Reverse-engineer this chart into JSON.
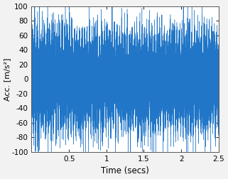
{
  "title": "",
  "xlabel": "Time (secs)",
  "ylabel": "Acc. [m/s²]",
  "xlim": [
    0,
    2.5
  ],
  "ylim": [
    -100,
    100
  ],
  "xticks": [
    0.5,
    1.0,
    1.5,
    2.0,
    2.5
  ],
  "yticks": [
    -100,
    -80,
    -60,
    -40,
    -20,
    0,
    20,
    40,
    60,
    80,
    100
  ],
  "line_color": "#2176C7",
  "fill_color": "#4AABDB",
  "background_color": "#F2F2F2",
  "axes_bg": "#FFFFFF",
  "n_samples": 50000,
  "fs": 20000,
  "duration": 2.5,
  "noise_std": 22,
  "base_amp": 18,
  "spike_prob": 0.005,
  "spike_amp": 55,
  "spike_extra": 25,
  "carrier_freq": 80,
  "carrier_amp": 8,
  "seed": 99,
  "linewidth": 0.3,
  "figsize": [
    3.21,
    2.52
  ],
  "dpi": 100
}
